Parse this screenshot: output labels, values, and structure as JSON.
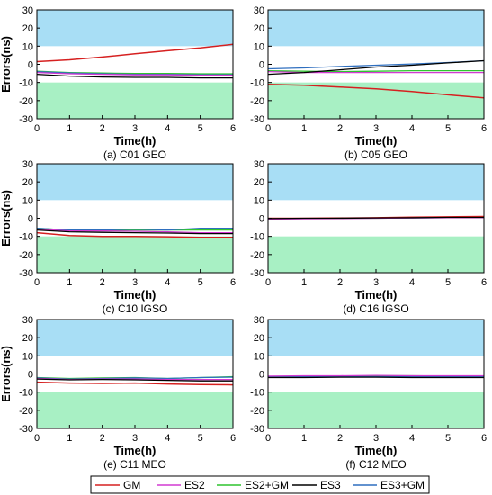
{
  "colors": {
    "GM": "#d62020",
    "ES2": "#d23ad2",
    "ES2+GM": "#2fc42f",
    "ES3": "#000000",
    "ES3+GM": "#2f6fbf",
    "upper_band": "#a8def5",
    "lower_band": "#a8f0c4"
  },
  "legend": [
    "GM",
    "ES2",
    "ES2+GM",
    "ES3",
    "ES3+GM"
  ],
  "chart_data": [
    {
      "type": "line",
      "caption": "(a) C01 GEO",
      "xlabel": "Time(h)",
      "ylabel": "Errors(ns)",
      "xlim": [
        0,
        6
      ],
      "ylim": [
        -30,
        30
      ],
      "xticks": [
        0,
        1,
        2,
        3,
        4,
        5,
        6
      ],
      "yticks": [
        -30,
        -20,
        -10,
        0,
        10,
        20,
        30
      ],
      "bands": [
        [
          10,
          30
        ],
        [
          -30,
          -10
        ]
      ],
      "x": [
        0,
        1,
        2,
        3,
        4,
        5,
        6
      ],
      "series": [
        {
          "name": "GM",
          "values": [
            1.5,
            2.5,
            4.0,
            5.8,
            7.5,
            9.0,
            11.0
          ]
        },
        {
          "name": "ES2",
          "values": [
            -4.5,
            -5.2,
            -5.5,
            -5.8,
            -5.8,
            -6.0,
            -6.0
          ]
        },
        {
          "name": "ES2+GM",
          "values": [
            -3.8,
            -4.5,
            -4.8,
            -5.0,
            -5.0,
            -5.2,
            -5.2
          ]
        },
        {
          "name": "ES3",
          "values": [
            -5.5,
            -6.5,
            -7.0,
            -7.2,
            -7.2,
            -7.5,
            -7.5
          ]
        },
        {
          "name": "ES3+GM",
          "values": [
            -4.0,
            -4.8,
            -5.2,
            -5.5,
            -5.5,
            -5.8,
            -5.8
          ]
        }
      ]
    },
    {
      "type": "line",
      "caption": "(b) C05 GEO",
      "xlabel": "Time(h)",
      "ylabel": "",
      "xlim": [
        0,
        6
      ],
      "ylim": [
        -30,
        30
      ],
      "xticks": [
        0,
        1,
        2,
        3,
        4,
        5,
        6
      ],
      "yticks": [
        -30,
        -20,
        -10,
        0,
        10,
        20,
        30
      ],
      "bands": [
        [
          10,
          30
        ],
        [
          -30,
          -10
        ]
      ],
      "x": [
        0,
        1,
        2,
        3,
        4,
        5,
        6
      ],
      "series": [
        {
          "name": "GM",
          "values": [
            -11.0,
            -11.5,
            -12.5,
            -13.5,
            -15.0,
            -16.8,
            -18.5
          ]
        },
        {
          "name": "ES2",
          "values": [
            -4.0,
            -4.5,
            -4.5,
            -4.5,
            -4.5,
            -4.5,
            -4.5
          ]
        },
        {
          "name": "ES2+GM",
          "values": [
            -3.5,
            -3.8,
            -4.0,
            -3.8,
            -3.5,
            -3.5,
            -3.5
          ]
        },
        {
          "name": "ES3",
          "values": [
            -5.5,
            -4.5,
            -3.0,
            -1.5,
            -0.5,
            0.8,
            2.0
          ]
        },
        {
          "name": "ES3+GM",
          "values": [
            -2.5,
            -2.0,
            -1.2,
            -0.5,
            0.2,
            1.0,
            2.0
          ]
        }
      ]
    },
    {
      "type": "line",
      "caption": "(c) C10 IGSO",
      "xlabel": "Time(h)",
      "ylabel": "Errors(ns)",
      "xlim": [
        0,
        6
      ],
      "ylim": [
        -30,
        30
      ],
      "xticks": [
        0,
        1,
        2,
        3,
        4,
        5,
        6
      ],
      "yticks": [
        -30,
        -20,
        -10,
        0,
        10,
        20,
        30
      ],
      "bands": [
        [
          10,
          30
        ],
        [
          -30,
          -10
        ]
      ],
      "x": [
        0,
        1,
        2,
        3,
        4,
        5,
        6
      ],
      "series": [
        {
          "name": "GM",
          "values": [
            -8.0,
            -9.5,
            -10.0,
            -10.0,
            -10.2,
            -10.5,
            -10.5
          ]
        },
        {
          "name": "ES2",
          "values": [
            -6.0,
            -7.0,
            -7.0,
            -7.2,
            -7.5,
            -8.0,
            -8.0
          ]
        },
        {
          "name": "ES2+GM",
          "values": [
            -5.5,
            -6.5,
            -6.8,
            -6.5,
            -6.5,
            -6.5,
            -6.5
          ]
        },
        {
          "name": "ES3",
          "values": [
            -6.5,
            -7.5,
            -7.8,
            -8.0,
            -8.2,
            -8.5,
            -8.5
          ]
        },
        {
          "name": "ES3+GM",
          "values": [
            -5.5,
            -6.5,
            -6.5,
            -6.0,
            -6.5,
            -5.5,
            -5.5
          ]
        }
      ]
    },
    {
      "type": "line",
      "caption": "(d) C16 IGSO",
      "xlabel": "Time(h)",
      "ylabel": "",
      "xlim": [
        0,
        6
      ],
      "ylim": [
        -30,
        30
      ],
      "xticks": [
        0,
        1,
        2,
        3,
        4,
        5,
        6
      ],
      "yticks": [
        -30,
        -20,
        -10,
        0,
        10,
        20,
        30
      ],
      "bands": [
        [
          10,
          30
        ],
        [
          -30,
          -10
        ]
      ],
      "x": [
        0,
        1,
        2,
        3,
        4,
        5,
        6
      ],
      "series": [
        {
          "name": "GM",
          "values": [
            0.0,
            0.0,
            0.2,
            0.3,
            0.6,
            0.8,
            1.0
          ]
        },
        {
          "name": "ES2",
          "values": [
            -0.5,
            -0.3,
            -0.2,
            0.0,
            0.2,
            0.3,
            0.3
          ]
        },
        {
          "name": "ES2+GM",
          "values": [
            -0.3,
            -0.2,
            0.0,
            0.0,
            0.2,
            0.4,
            0.4
          ]
        },
        {
          "name": "ES3",
          "values": [
            -0.2,
            0.0,
            0.0,
            0.2,
            0.3,
            0.5,
            0.5
          ]
        },
        {
          "name": "ES3+GM",
          "values": [
            -0.3,
            -0.2,
            0.0,
            0.1,
            0.2,
            0.3,
            0.3
          ]
        }
      ]
    },
    {
      "type": "line",
      "caption": "(e) C11 MEO",
      "xlabel": "Time(h)",
      "ylabel": "Errors(ns)",
      "xlim": [
        0,
        6
      ],
      "ylim": [
        -30,
        30
      ],
      "xticks": [
        0,
        1,
        2,
        3,
        4,
        5,
        6
      ],
      "yticks": [
        -30,
        -20,
        -10,
        0,
        10,
        20,
        30
      ],
      "bands": [
        [
          10,
          30
        ],
        [
          -30,
          -10
        ]
      ],
      "x": [
        0,
        1,
        2,
        3,
        4,
        5,
        6
      ],
      "series": [
        {
          "name": "GM",
          "values": [
            -4.5,
            -5.0,
            -5.2,
            -5.0,
            -5.5,
            -5.8,
            -6.0
          ]
        },
        {
          "name": "ES2",
          "values": [
            -2.5,
            -3.0,
            -2.8,
            -2.8,
            -3.0,
            -3.0,
            -3.0
          ]
        },
        {
          "name": "ES2+GM",
          "values": [
            -2.0,
            -2.5,
            -2.2,
            -2.0,
            -2.5,
            -2.0,
            -1.5
          ]
        },
        {
          "name": "ES3",
          "values": [
            -2.8,
            -3.2,
            -3.0,
            -3.2,
            -3.5,
            -3.8,
            -3.8
          ]
        },
        {
          "name": "ES3+GM",
          "values": [
            -2.2,
            -2.8,
            -2.5,
            -2.2,
            -2.5,
            -2.0,
            -1.8
          ]
        }
      ]
    },
    {
      "type": "line",
      "caption": "(f) C12 MEO",
      "xlabel": "Time(h)",
      "ylabel": "",
      "xlim": [
        0,
        6
      ],
      "ylim": [
        -30,
        30
      ],
      "xticks": [
        0,
        1,
        2,
        3,
        4,
        5,
        6
      ],
      "yticks": [
        -30,
        -20,
        -10,
        0,
        10,
        20,
        30
      ],
      "bands": [
        [
          10,
          30
        ],
        [
          -30,
          -10
        ]
      ],
      "x": [
        0,
        1,
        2,
        3,
        4,
        5,
        6
      ],
      "series": [
        {
          "name": "GM",
          "values": [
            -1.5,
            -1.5,
            -1.5,
            -1.2,
            -1.2,
            -1.5,
            -1.5
          ]
        },
        {
          "name": "ES2",
          "values": [
            -1.2,
            -1.0,
            -1.0,
            -0.8,
            -1.0,
            -1.0,
            -1.0
          ]
        },
        {
          "name": "ES2+GM",
          "values": [
            -1.5,
            -1.2,
            -1.2,
            -1.0,
            -1.0,
            -1.2,
            -1.2
          ]
        },
        {
          "name": "ES3",
          "values": [
            -2.0,
            -2.0,
            -1.8,
            -1.8,
            -2.0,
            -2.0,
            -2.0
          ]
        },
        {
          "name": "ES3+GM",
          "values": [
            -1.8,
            -1.5,
            -1.5,
            -1.5,
            -1.5,
            -1.5,
            -1.5
          ]
        }
      ]
    }
  ]
}
